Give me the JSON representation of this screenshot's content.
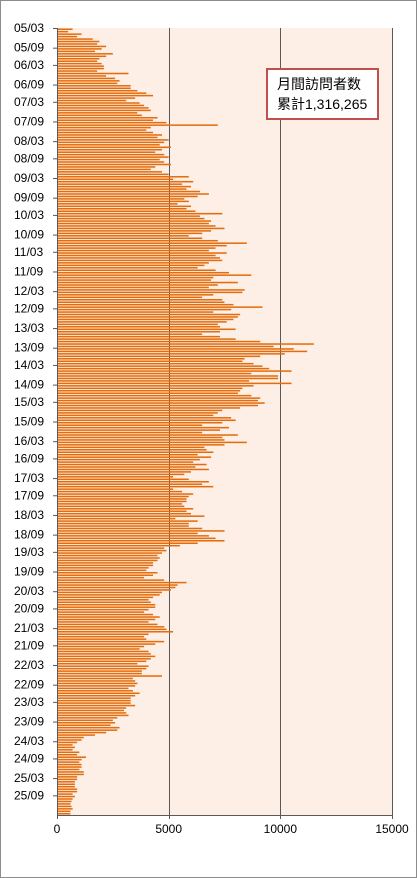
{
  "chart_data": {
    "type": "bar",
    "orientation": "horizontal",
    "title": "",
    "xlabel": "",
    "ylabel": "",
    "xlim": [
      0,
      15000
    ],
    "x_ticks": [
      0,
      5000,
      10000,
      15000
    ],
    "y_tick_labels": [
      "05/03",
      "05/09",
      "06/03",
      "06/09",
      "07/03",
      "07/09",
      "08/03",
      "08/09",
      "09/03",
      "09/09",
      "10/03",
      "10/09",
      "11/03",
      "11/09",
      "12/03",
      "12/09",
      "13/03",
      "13/09",
      "14/03",
      "14/09",
      "15/03",
      "15/09",
      "16/03",
      "16/09",
      "17/03",
      "17/09",
      "18/03",
      "18/09",
      "19/03",
      "19/09",
      "20/03",
      "20/09",
      "21/03",
      "21/09",
      "22/03",
      "22/09",
      "23/03",
      "23/09",
      "24/03",
      "24/09",
      "25/03",
      "25/09"
    ],
    "grid": true,
    "bar_color": "#e46c0a",
    "plot_background": "#fdeee6",
    "annotation": {
      "line1": "月間訪問者数",
      "line2": "累計1,316,265"
    },
    "values": [
      700,
      500,
      1100,
      900,
      1600,
      1900,
      1800,
      2200,
      2000,
      1700,
      2500,
      2200,
      1900,
      1800,
      2000,
      2100,
      2100,
      1800,
      3200,
      2200,
      2600,
      2800,
      2700,
      3300,
      3300,
      3600,
      4000,
      4300,
      3500,
      3100,
      3700,
      3900,
      4100,
      4200,
      3600,
      3800,
      4500,
      4300,
      4900,
      7200,
      4200,
      4000,
      4300,
      4700,
      4500,
      5000,
      4800,
      4600,
      5100,
      4700,
      4400,
      4800,
      5000,
      4600,
      4800,
      5100,
      4400,
      4200,
      4700,
      5000,
      5900,
      5200,
      6100,
      5600,
      6000,
      5800,
      6400,
      6800,
      6300,
      5700,
      5900,
      5400,
      6000,
      5800,
      6200,
      7400,
      6400,
      6600,
      6900,
      6800,
      7100,
      7500,
      6900,
      6500,
      5900,
      6500,
      7200,
      8500,
      7600,
      7100,
      6800,
      7600,
      7100,
      7300,
      7400,
      6800,
      6600,
      6300,
      7100,
      7700,
      8700,
      7000,
      6900,
      8100,
      7200,
      6800,
      8400,
      8300,
      7000,
      6500,
      7400,
      7500,
      7900,
      9200,
      7800,
      7000,
      8200,
      8100,
      7900,
      7600,
      7200,
      7300,
      8000,
      7300,
      6500,
      7300,
      8000,
      9100,
      11500,
      9700,
      10600,
      11200,
      10200,
      9100,
      8400,
      8300,
      8800,
      9200,
      9500,
      10500,
      8700,
      9900,
      9900,
      8600,
      10500,
      8800,
      8300,
      8200,
      8100,
      8700,
      9100,
      9000,
      9300,
      9000,
      8200,
      7400,
      7200,
      7000,
      7800,
      8000,
      7400,
      6500,
      7700,
      7300,
      6500,
      8100,
      7400,
      7500,
      8500,
      7500,
      6600,
      6700,
      7000,
      6300,
      6900,
      6400,
      6100,
      6700,
      6200,
      6800,
      6000,
      5700,
      5200,
      5900,
      6800,
      6500,
      7000,
      5200,
      5600,
      6100,
      5900,
      5800,
      5800,
      5600,
      5700,
      6100,
      5800,
      6000,
      6600,
      5300,
      6300,
      5900,
      5900,
      6500,
      7500,
      6300,
      6800,
      7100,
      7500,
      6300,
      5500,
      4800,
      4900,
      4700,
      4500,
      4600,
      4500,
      4300,
      4300,
      4100,
      4000,
      4500,
      4300,
      3900,
      4800,
      5800,
      5400,
      5300,
      5100,
      4700,
      4600,
      4300,
      4100,
      4200,
      4400,
      4400,
      4100,
      3900,
      4300,
      4600,
      4400,
      4100,
      4500,
      4800,
      4900,
      5200,
      4100,
      3900,
      4000,
      4800,
      4400,
      3900,
      3700,
      4100,
      4200,
      4400,
      4200,
      4000,
      3600,
      4100,
      4000,
      3800,
      3800,
      4700,
      3400,
      3500,
      3600,
      3500,
      3200,
      3400,
      3700,
      3500,
      3300,
      3300,
      3300,
      3500,
      3100,
      3000,
      3100,
      3200,
      2700,
      2500,
      2600,
      2400,
      2800,
      2700,
      2200,
      1700,
      1200,
      1100,
      900,
      700,
      800,
      700,
      1000,
      900,
      1300,
      1100,
      1000,
      1100,
      1100,
      1000,
      1200,
      1200,
      900,
      900,
      800,
      800,
      800,
      900,
      900,
      700,
      800,
      700,
      650,
      600,
      650,
      700,
      600,
      600
    ]
  }
}
